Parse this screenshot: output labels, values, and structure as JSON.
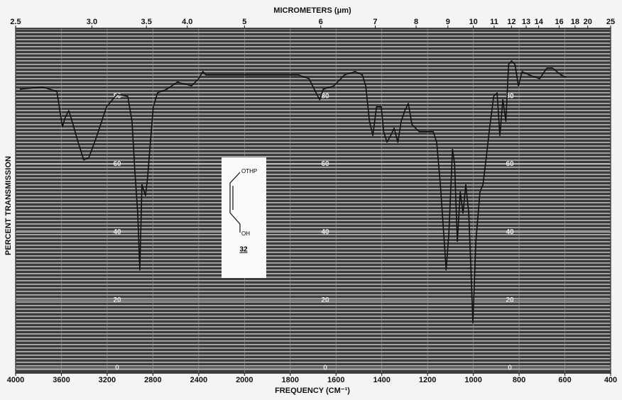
{
  "chart_data": {
    "type": "line",
    "title": "MICROMETERS (μm)",
    "x_label": "FREQUENCY (CM⁻¹)",
    "y_label": "PERCENT TRANSMISSION",
    "color": "#111111",
    "grid": true,
    "xlim": [
      4000,
      400
    ],
    "xticks": [
      4000,
      3600,
      3200,
      2800,
      2400,
      2000,
      1800,
      1600,
      1400,
      1200,
      1000,
      800,
      600,
      400
    ],
    "top_ticks": [
      2.5,
      {
        "value": 3,
        "label": "3.0"
      },
      3.5,
      {
        "value": 4,
        "label": "4.0"
      },
      5,
      6,
      7,
      8,
      9,
      10,
      11,
      12,
      13,
      14,
      16,
      18,
      20,
      25
    ],
    "ylim": [
      0,
      100
    ],
    "yticks": [
      0,
      20,
      40,
      60,
      80
    ],
    "x": [
      3963,
      3764,
      3640,
      3591,
      3566,
      3535,
      3498,
      3454,
      3405,
      3361,
      3299,
      3206,
      3113,
      3020,
      2983,
      2958,
      2933,
      2915,
      2896,
      2865,
      2847,
      2822,
      2797,
      2760,
      2679,
      2586,
      2462,
      2400,
      2363,
      2338,
      2152,
      1888,
      1764,
      1718,
      1687,
      1671,
      1656,
      1609,
      1563,
      1516,
      1485,
      1470,
      1454,
      1439,
      1423,
      1402,
      1392,
      1377,
      1361,
      1346,
      1330,
      1315,
      1299,
      1284,
      1268,
      1237,
      1175,
      1160,
      1144,
      1129,
      1119,
      1107,
      1091,
      1082,
      1070,
      1057,
      1045,
      1033,
      1020,
      1008,
      1002,
      989,
      971,
      958,
      943,
      929,
      911,
      896,
      884,
      871,
      858,
      846,
      833,
      818,
      803,
      787,
      756,
      710,
      679,
      654,
      617,
      595
    ],
    "values": [
      82.1,
      82.7,
      81.5,
      71.0,
      73.8,
      75.8,
      71.7,
      66.5,
      61.3,
      61.9,
      67.5,
      76.9,
      80.6,
      80.0,
      72.7,
      58.1,
      45.6,
      28.9,
      54.0,
      50.8,
      56.0,
      66.5,
      76.9,
      81.0,
      82.1,
      84.2,
      83.1,
      85.2,
      87.3,
      86.3,
      86.3,
      86.3,
      86.3,
      85.2,
      81.0,
      79.0,
      82.1,
      83.1,
      86.3,
      87.3,
      86.3,
      83.1,
      72.7,
      68.5,
      76.9,
      76.9,
      69.6,
      66.5,
      68.5,
      70.6,
      66.5,
      72.7,
      75.8,
      77.9,
      71.7,
      69.6,
      69.6,
      66.5,
      54.0,
      39.4,
      28.9,
      39.4,
      64.4,
      60.2,
      37.3,
      51.9,
      45.6,
      54.0,
      45.6,
      24.8,
      13.3,
      37.3,
      51.9,
      54.0,
      62.3,
      70.6,
      80.0,
      81.0,
      68.5,
      79.0,
      72.7,
      89.4,
      90.4,
      89.4,
      83.1,
      87.3,
      86.3,
      85.2,
      88.3,
      88.3,
      86.3,
      85.6
    ],
    "structure": {
      "top_group": "OTHP",
      "bottom_group": "OH",
      "compound_number": "32"
    }
  }
}
